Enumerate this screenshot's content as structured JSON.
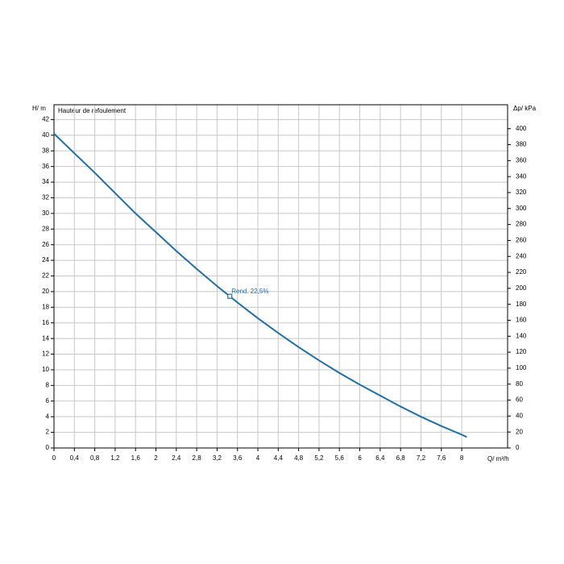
{
  "chart_data": {
    "type": "line",
    "title": "Hauteur de refoulement",
    "x_label": "Q/ m³/h",
    "y_label": "H/ m",
    "y2_label": "Δp/ kPa",
    "series": [
      {
        "name": "H",
        "color": "#1f6fa8",
        "x": [
          0,
          0.4,
          0.8,
          1.2,
          1.6,
          2.0,
          2.4,
          2.8,
          3.2,
          3.45,
          3.6,
          4.0,
          4.4,
          4.8,
          5.2,
          5.6,
          6.0,
          6.4,
          6.8,
          7.2,
          7.6,
          8.0,
          8.1
        ],
        "values": [
          40.2,
          37.7,
          35.2,
          32.6,
          30.0,
          27.6,
          25.2,
          22.9,
          20.7,
          19.4,
          18.6,
          16.6,
          14.7,
          12.9,
          11.2,
          9.6,
          8.1,
          6.7,
          5.3,
          4.0,
          2.8,
          1.7,
          1.4
        ]
      }
    ],
    "annotations": [
      {
        "x": 3.45,
        "y": 19.4,
        "label": "Rend. 22,5%"
      }
    ],
    "xlim": [
      0,
      8.9
    ],
    "xticks": [
      0,
      {
        "value": 0.4,
        "label": "0,4"
      },
      {
        "value": 0.8,
        "label": "0,8"
      },
      {
        "value": 1.2,
        "label": "1,2"
      },
      {
        "value": 1.6,
        "label": "1,6"
      },
      2,
      {
        "value": 2.4,
        "label": "2,4"
      },
      {
        "value": 2.8,
        "label": "2,8"
      },
      {
        "value": 3.2,
        "label": "3,2"
      },
      {
        "value": 3.6,
        "label": "3,6"
      },
      4,
      {
        "value": 4.4,
        "label": "4,4"
      },
      {
        "value": 4.8,
        "label": "4,8"
      },
      {
        "value": 5.2,
        "label": "5,2"
      },
      {
        "value": 5.6,
        "label": "5,6"
      },
      6,
      {
        "value": 6.4,
        "label": "6,4"
      },
      {
        "value": 6.8,
        "label": "6,8"
      },
      {
        "value": 7.2,
        "label": "7,2"
      },
      {
        "value": 7.6,
        "label": "7,6"
      },
      8
    ],
    "ylim": [
      0,
      43.9
    ],
    "yticks": [
      0,
      2,
      4,
      6,
      8,
      10,
      12,
      14,
      16,
      18,
      20,
      22,
      24,
      26,
      28,
      30,
      32,
      34,
      36,
      38,
      40,
      42
    ],
    "y2lim": [
      0,
      430
    ],
    "y2ticks": [
      0,
      20,
      40,
      60,
      80,
      100,
      120,
      140,
      160,
      180,
      200,
      220,
      240,
      260,
      280,
      300,
      320,
      340,
      360,
      380,
      400
    ],
    "grid": true
  }
}
